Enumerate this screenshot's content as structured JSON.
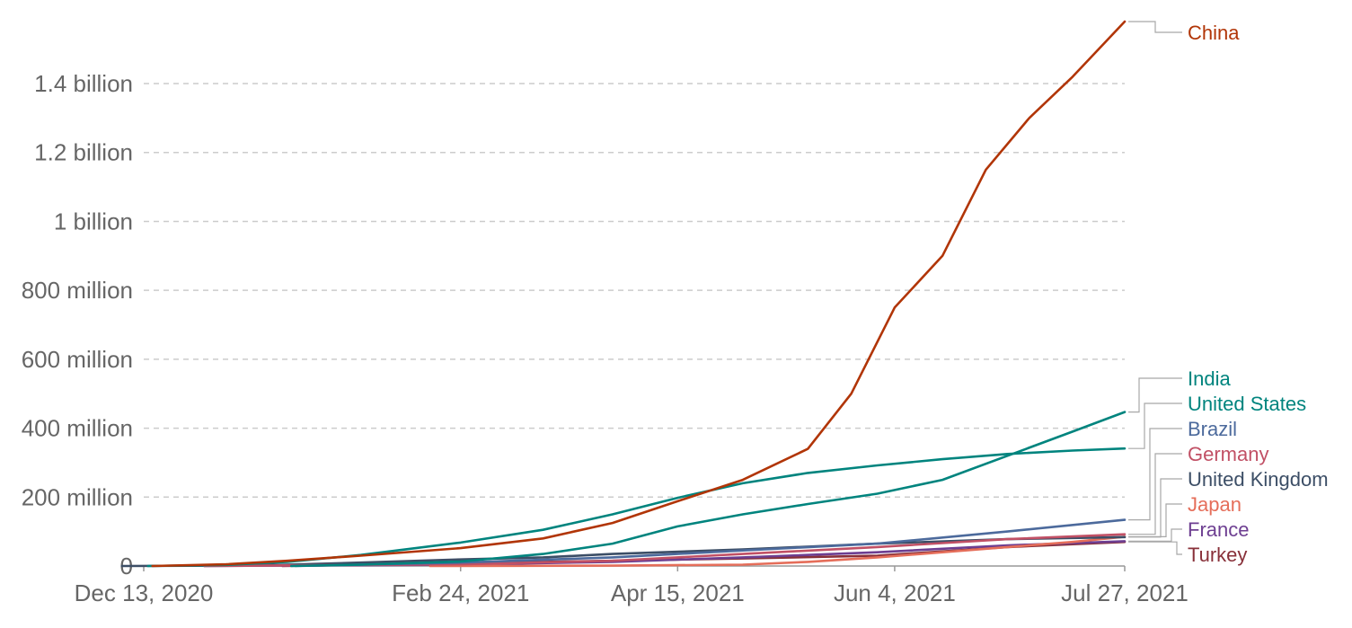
{
  "chart_data": {
    "type": "line",
    "title": "",
    "xlabel": "",
    "ylabel": "",
    "x_domain": [
      "2020-12-13",
      "2021-07-27"
    ],
    "ylim": [
      0,
      1580000000
    ],
    "grid": "horizontal dashed",
    "legend": "right, inline labels at line ends",
    "x_ticks": [
      {
        "date": "2020-12-13",
        "label": "Dec 13, 2020"
      },
      {
        "date": "2021-02-24",
        "label": "Feb 24, 2021"
      },
      {
        "date": "2021-04-15",
        "label": "Apr 15, 2021"
      },
      {
        "date": "2021-06-04",
        "label": "Jun 4, 2021"
      },
      {
        "date": "2021-07-27",
        "label": "Jul 27, 2021"
      }
    ],
    "y_ticks": [
      {
        "value": 0,
        "label": "0"
      },
      {
        "value": 200000000,
        "label": "200 million"
      },
      {
        "value": 400000000,
        "label": "400 million"
      },
      {
        "value": 600000000,
        "label": "600 million"
      },
      {
        "value": 800000000,
        "label": "800 million"
      },
      {
        "value": 1000000000,
        "label": "1 billion"
      },
      {
        "value": 1200000000,
        "label": "1.2 billion"
      },
      {
        "value": 1400000000,
        "label": "1.4 billion"
      }
    ],
    "series": [
      {
        "name": "China",
        "color": "#b13507",
        "points": [
          [
            "2020-12-15",
            0
          ],
          [
            "2021-01-01",
            5000000
          ],
          [
            "2021-01-15",
            15000000
          ],
          [
            "2021-02-01",
            30000000
          ],
          [
            "2021-02-24",
            52000000
          ],
          [
            "2021-03-15",
            80000000
          ],
          [
            "2021-03-31",
            125000000
          ],
          [
            "2021-04-15",
            188000000
          ],
          [
            "2021-04-30",
            250000000
          ],
          [
            "2021-05-15",
            340000000
          ],
          [
            "2021-05-25",
            500000000
          ],
          [
            "2021-06-04",
            750000000
          ],
          [
            "2021-06-15",
            900000000
          ],
          [
            "2021-06-25",
            1150000000
          ],
          [
            "2021-07-05",
            1300000000
          ],
          [
            "2021-07-15",
            1420000000
          ],
          [
            "2021-07-27",
            1580000000
          ]
        ]
      },
      {
        "name": "India",
        "color": "#00847e",
        "points": [
          [
            "2021-01-16",
            0
          ],
          [
            "2021-02-01",
            4000000
          ],
          [
            "2021-02-24",
            13000000
          ],
          [
            "2021-03-15",
            35000000
          ],
          [
            "2021-03-31",
            65000000
          ],
          [
            "2021-04-15",
            115000000
          ],
          [
            "2021-04-30",
            150000000
          ],
          [
            "2021-05-15",
            180000000
          ],
          [
            "2021-05-31",
            210000000
          ],
          [
            "2021-06-15",
            250000000
          ],
          [
            "2021-06-30",
            320000000
          ],
          [
            "2021-07-15",
            390000000
          ],
          [
            "2021-07-27",
            447000000
          ]
        ]
      },
      {
        "name": "United States",
        "color": "#00847e",
        "points": [
          [
            "2020-12-14",
            0
          ],
          [
            "2021-01-01",
            3000000
          ],
          [
            "2021-01-15",
            12000000
          ],
          [
            "2021-02-01",
            32000000
          ],
          [
            "2021-02-24",
            68000000
          ],
          [
            "2021-03-15",
            105000000
          ],
          [
            "2021-03-31",
            150000000
          ],
          [
            "2021-04-15",
            198000000
          ],
          [
            "2021-04-30",
            240000000
          ],
          [
            "2021-05-15",
            270000000
          ],
          [
            "2021-05-31",
            292000000
          ],
          [
            "2021-06-15",
            310000000
          ],
          [
            "2021-06-30",
            325000000
          ],
          [
            "2021-07-15",
            335000000
          ],
          [
            "2021-07-27",
            341000000
          ]
        ]
      },
      {
        "name": "Brazil",
        "color": "#4c6a9c",
        "points": [
          [
            "2021-01-17",
            0
          ],
          [
            "2021-02-24",
            10000000
          ],
          [
            "2021-03-31",
            25000000
          ],
          [
            "2021-04-30",
            45000000
          ],
          [
            "2021-05-31",
            65000000
          ],
          [
            "2021-06-30",
            100000000
          ],
          [
            "2021-07-27",
            134000000
          ]
        ]
      },
      {
        "name": "Germany",
        "color": "#c15065",
        "points": [
          [
            "2020-12-27",
            0
          ],
          [
            "2021-02-24",
            5000000
          ],
          [
            "2021-03-31",
            15000000
          ],
          [
            "2021-04-30",
            35000000
          ],
          [
            "2021-05-31",
            55000000
          ],
          [
            "2021-06-30",
            78000000
          ],
          [
            "2021-07-27",
            92000000
          ]
        ]
      },
      {
        "name": "United Kingdom",
        "color": "#3c4e66",
        "points": [
          [
            "2020-12-08",
            0
          ],
          [
            "2021-01-01",
            1000000
          ],
          [
            "2021-01-15",
            4000000
          ],
          [
            "2021-02-01",
            10000000
          ],
          [
            "2021-02-24",
            19000000
          ],
          [
            "2021-03-15",
            25000000
          ],
          [
            "2021-03-31",
            35000000
          ],
          [
            "2021-04-30",
            48000000
          ],
          [
            "2021-05-31",
            65000000
          ],
          [
            "2021-06-30",
            78000000
          ],
          [
            "2021-07-27",
            84000000
          ]
        ]
      },
      {
        "name": "Japan",
        "color": "#e56e5a",
        "points": [
          [
            "2021-02-17",
            0
          ],
          [
            "2021-03-31",
            1000000
          ],
          [
            "2021-04-30",
            4000000
          ],
          [
            "2021-05-15",
            12000000
          ],
          [
            "2021-05-31",
            25000000
          ],
          [
            "2021-06-15",
            40000000
          ],
          [
            "2021-06-30",
            55000000
          ],
          [
            "2021-07-15",
            70000000
          ],
          [
            "2021-07-27",
            85000000
          ]
        ]
      },
      {
        "name": "France",
        "color": "#6d3e91",
        "points": [
          [
            "2020-12-27",
            0
          ],
          [
            "2021-02-24",
            4000000
          ],
          [
            "2021-03-31",
            12000000
          ],
          [
            "2021-04-30",
            25000000
          ],
          [
            "2021-05-31",
            40000000
          ],
          [
            "2021-06-30",
            60000000
          ],
          [
            "2021-07-27",
            72000000
          ]
        ]
      },
      {
        "name": "Turkey",
        "color": "#883039",
        "points": [
          [
            "2021-01-14",
            0
          ],
          [
            "2021-02-24",
            8000000
          ],
          [
            "2021-03-31",
            15000000
          ],
          [
            "2021-04-30",
            22000000
          ],
          [
            "2021-05-31",
            30000000
          ],
          [
            "2021-06-30",
            55000000
          ],
          [
            "2021-07-27",
            70000000
          ]
        ]
      }
    ]
  },
  "labels": {
    "label_colors": {
      "China": "#b13507",
      "India": "#00847e",
      "United States": "#00847e",
      "Brazil": "#4c6a9c",
      "Germany": "#c15065",
      "United Kingdom": "#3c4e66",
      "Japan": "#e56e5a",
      "France": "#6d3e91",
      "Turkey": "#883039"
    }
  }
}
